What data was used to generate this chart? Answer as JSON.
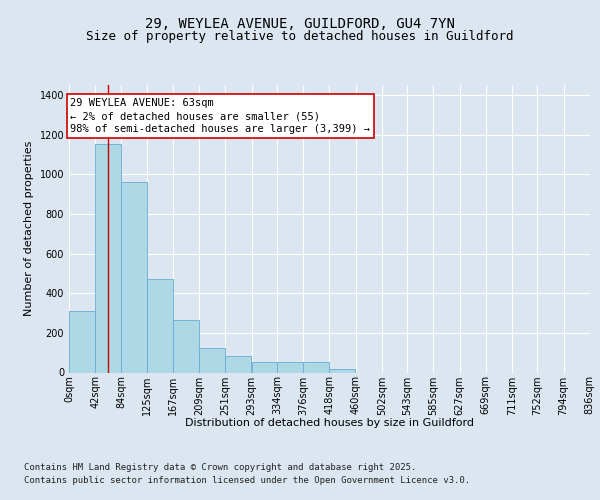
{
  "title_line1": "29, WEYLEA AVENUE, GUILDFORD, GU4 7YN",
  "title_line2": "Size of property relative to detached houses in Guildford",
  "xlabel": "Distribution of detached houses by size in Guildford",
  "ylabel": "Number of detached properties",
  "annotation_title": "29 WEYLEA AVENUE: 63sqm",
  "annotation_line2": "← 2% of detached houses are smaller (55)",
  "annotation_line3": "98% of semi-detached houses are larger (3,399) →",
  "footer_line1": "Contains HM Land Registry data © Crown copyright and database right 2025.",
  "footer_line2": "Contains public sector information licensed under the Open Government Licence v3.0.",
  "bin_edges": [
    0,
    42,
    84,
    125,
    167,
    209,
    251,
    293,
    334,
    376,
    418,
    460,
    502,
    543,
    585,
    627,
    669,
    711,
    752,
    794,
    836
  ],
  "bar_heights": [
    310,
    1150,
    960,
    470,
    265,
    125,
    85,
    55,
    55,
    55,
    20,
    0,
    0,
    0,
    0,
    0,
    0,
    0,
    0,
    0
  ],
  "bar_color": "#add8e6",
  "bar_edge_color": "#6aaad4",
  "property_size": 63,
  "vline_color": "#cc0000",
  "ylim": [
    0,
    1450
  ],
  "yticks": [
    0,
    200,
    400,
    600,
    800,
    1000,
    1200,
    1400
  ],
  "background_color": "#dce6f0",
  "plot_background": "#dce6f0",
  "grid_color": "#ffffff",
  "title_fontsize": 10,
  "subtitle_fontsize": 9,
  "axis_label_fontsize": 8,
  "tick_fontsize": 7,
  "annotation_fontsize": 7.5,
  "footer_fontsize": 6.5
}
